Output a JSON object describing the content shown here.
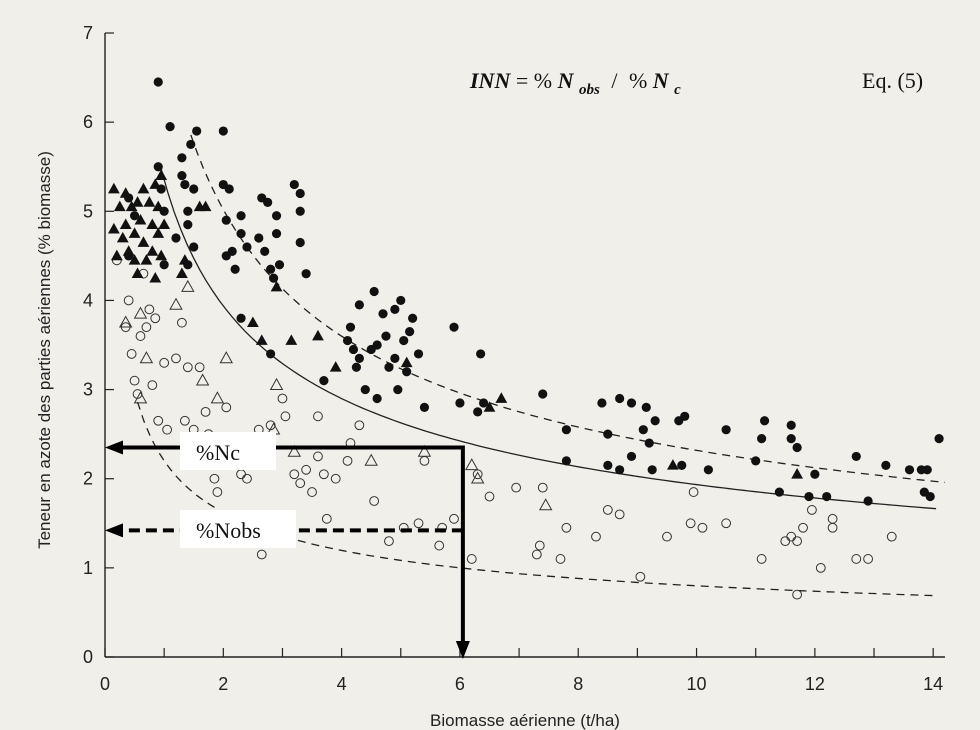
{
  "chart_data": {
    "type": "scatter",
    "xlabel": "Biomasse aérienne (t/ha)",
    "ylabel": "Teneur en azote des parties aériennes (% biomasse)",
    "xlim": [
      0,
      14.2
    ],
    "ylim": [
      0,
      7
    ],
    "x_ticks": [
      0,
      2,
      4,
      6,
      8,
      10,
      12,
      14
    ],
    "y_ticks": [
      0,
      1,
      2,
      3,
      4,
      5,
      6,
      7
    ],
    "x_minor_ticks": [
      1,
      3,
      5,
      7,
      9,
      11,
      13
    ],
    "grid": false,
    "equation": {
      "lhs": "INN",
      "pct1": "%",
      "var1": "N",
      "sub1": "obs",
      "sep": "/",
      "pct2": "%",
      "var2": "N",
      "sub2": "c",
      "ref": "Eq. (5)"
    },
    "annotations": {
      "nc_label": "%Nc",
      "nobs_label": "%Nobs",
      "biomass_x": 6.05,
      "nc_y": 2.35,
      "nobs_y": 1.42
    },
    "curves": {
      "critical": {
        "a": 5.35,
        "b": -0.442,
        "x_start": 0.95,
        "x_end": 14.05
      },
      "upper": {
        "a": 7.0,
        "b": -0.48,
        "x_start": 1.45,
        "x_end": 14.2
      },
      "lower": {
        "a": 2.2,
        "b": -0.44,
        "x_start": 0.55,
        "x_end": 14.0
      }
    },
    "series": [
      {
        "marker": "filled-circle",
        "points": [
          [
            0.4,
            4.5
          ],
          [
            0.4,
            5.15
          ],
          [
            0.5,
            4.95
          ],
          [
            0.9,
            6.45
          ],
          [
            0.9,
            5.5
          ],
          [
            0.95,
            5.25
          ],
          [
            1.0,
            4.4
          ],
          [
            1.0,
            5.0
          ],
          [
            1.1,
            5.95
          ],
          [
            1.2,
            4.7
          ],
          [
            1.3,
            5.6
          ],
          [
            1.3,
            5.4
          ],
          [
            1.35,
            5.3
          ],
          [
            1.4,
            5.0
          ],
          [
            1.4,
            4.85
          ],
          [
            1.45,
            5.75
          ],
          [
            1.5,
            5.25
          ],
          [
            1.5,
            4.6
          ],
          [
            1.55,
            5.9
          ],
          [
            1.4,
            4.4
          ],
          [
            2.0,
            5.9
          ],
          [
            2.0,
            5.3
          ],
          [
            2.05,
            4.9
          ],
          [
            2.05,
            4.5
          ],
          [
            2.1,
            5.25
          ],
          [
            2.15,
            4.55
          ],
          [
            2.2,
            4.35
          ],
          [
            2.3,
            4.95
          ],
          [
            2.3,
            4.75
          ],
          [
            2.4,
            4.6
          ],
          [
            2.6,
            4.7
          ],
          [
            2.65,
            5.15
          ],
          [
            2.7,
            4.55
          ],
          [
            2.75,
            5.1
          ],
          [
            2.8,
            4.35
          ],
          [
            2.85,
            4.25
          ],
          [
            2.9,
            4.95
          ],
          [
            2.9,
            4.75
          ],
          [
            2.95,
            4.4
          ],
          [
            2.3,
            3.8
          ],
          [
            2.8,
            3.4
          ],
          [
            3.2,
            5.3
          ],
          [
            3.3,
            5.2
          ],
          [
            3.3,
            5.0
          ],
          [
            3.3,
            4.65
          ],
          [
            3.4,
            4.3
          ],
          [
            3.7,
            3.1
          ],
          [
            4.1,
            3.55
          ],
          [
            4.15,
            3.7
          ],
          [
            4.2,
            3.45
          ],
          [
            4.25,
            3.25
          ],
          [
            4.3,
            3.95
          ],
          [
            4.3,
            3.35
          ],
          [
            4.4,
            3.0
          ],
          [
            4.5,
            3.45
          ],
          [
            4.55,
            4.1
          ],
          [
            4.6,
            3.5
          ],
          [
            4.6,
            2.9
          ],
          [
            4.7,
            3.85
          ],
          [
            4.75,
            3.6
          ],
          [
            4.8,
            3.25
          ],
          [
            4.9,
            3.9
          ],
          [
            4.9,
            3.35
          ],
          [
            4.95,
            3.0
          ],
          [
            5.0,
            4.0
          ],
          [
            5.05,
            3.55
          ],
          [
            5.1,
            3.2
          ],
          [
            5.15,
            3.65
          ],
          [
            5.2,
            3.8
          ],
          [
            5.3,
            3.4
          ],
          [
            5.4,
            2.8
          ],
          [
            5.9,
            3.7
          ],
          [
            6.0,
            2.85
          ],
          [
            6.3,
            2.75
          ],
          [
            6.35,
            3.4
          ],
          [
            6.4,
            2.85
          ],
          [
            7.4,
            2.95
          ],
          [
            7.8,
            2.55
          ],
          [
            7.8,
            2.2
          ],
          [
            8.4,
            2.85
          ],
          [
            8.5,
            2.5
          ],
          [
            8.5,
            2.15
          ],
          [
            8.7,
            2.1
          ],
          [
            8.7,
            2.9
          ],
          [
            8.9,
            2.85
          ],
          [
            8.9,
            2.25
          ],
          [
            9.1,
            2.55
          ],
          [
            9.15,
            2.8
          ],
          [
            9.2,
            2.4
          ],
          [
            9.25,
            2.1
          ],
          [
            9.3,
            2.65
          ],
          [
            9.7,
            2.65
          ],
          [
            9.75,
            2.15
          ],
          [
            9.8,
            2.7
          ],
          [
            10.2,
            2.1
          ],
          [
            10.5,
            2.55
          ],
          [
            11.0,
            2.2
          ],
          [
            11.1,
            2.45
          ],
          [
            11.15,
            2.65
          ],
          [
            11.4,
            1.85
          ],
          [
            11.6,
            2.6
          ],
          [
            11.6,
            2.45
          ],
          [
            11.7,
            2.35
          ],
          [
            11.9,
            1.8
          ],
          [
            12.0,
            2.05
          ],
          [
            12.2,
            1.8
          ],
          [
            12.7,
            2.25
          ],
          [
            12.9,
            1.75
          ],
          [
            13.2,
            2.15
          ],
          [
            13.6,
            2.1
          ],
          [
            13.8,
            2.1
          ],
          [
            13.85,
            1.85
          ],
          [
            13.9,
            2.1
          ],
          [
            13.95,
            1.8
          ],
          [
            14.1,
            2.45
          ]
        ]
      },
      {
        "marker": "open-circle",
        "points": [
          [
            0.2,
            4.45
          ],
          [
            0.35,
            3.7
          ],
          [
            0.4,
            4.0
          ],
          [
            0.45,
            3.4
          ],
          [
            0.5,
            3.1
          ],
          [
            0.55,
            2.95
          ],
          [
            0.6,
            3.6
          ],
          [
            0.65,
            4.3
          ],
          [
            0.7,
            3.7
          ],
          [
            0.75,
            3.9
          ],
          [
            0.8,
            3.05
          ],
          [
            0.85,
            3.8
          ],
          [
            0.9,
            2.65
          ],
          [
            1.0,
            3.3
          ],
          [
            1.05,
            2.55
          ],
          [
            1.2,
            3.35
          ],
          [
            1.3,
            3.75
          ],
          [
            1.35,
            2.65
          ],
          [
            1.4,
            3.25
          ],
          [
            1.5,
            2.55
          ],
          [
            1.6,
            3.25
          ],
          [
            1.7,
            2.75
          ],
          [
            1.75,
            2.5
          ],
          [
            1.85,
            2.0
          ],
          [
            1.9,
            1.85
          ],
          [
            2.0,
            2.45
          ],
          [
            2.05,
            2.8
          ],
          [
            2.3,
            2.05
          ],
          [
            2.4,
            2.0
          ],
          [
            2.6,
            2.55
          ],
          [
            2.65,
            1.15
          ],
          [
            2.8,
            2.6
          ],
          [
            3.0,
            2.9
          ],
          [
            3.05,
            2.7
          ],
          [
            3.2,
            2.05
          ],
          [
            3.3,
            1.95
          ],
          [
            3.4,
            2.1
          ],
          [
            3.5,
            1.85
          ],
          [
            3.6,
            2.25
          ],
          [
            3.6,
            2.7
          ],
          [
            3.7,
            2.05
          ],
          [
            3.75,
            1.55
          ],
          [
            3.9,
            2.0
          ],
          [
            4.1,
            2.2
          ],
          [
            4.15,
            2.4
          ],
          [
            4.3,
            2.6
          ],
          [
            4.55,
            1.75
          ],
          [
            4.8,
            1.3
          ],
          [
            5.05,
            1.45
          ],
          [
            5.3,
            1.5
          ],
          [
            5.4,
            2.2
          ],
          [
            5.65,
            1.25
          ],
          [
            5.7,
            1.45
          ],
          [
            5.9,
            1.55
          ],
          [
            6.2,
            1.1
          ],
          [
            6.3,
            2.05
          ],
          [
            6.5,
            1.8
          ],
          [
            6.95,
            1.9
          ],
          [
            7.3,
            1.15
          ],
          [
            7.35,
            1.25
          ],
          [
            7.4,
            1.9
          ],
          [
            7.7,
            1.1
          ],
          [
            7.8,
            1.45
          ],
          [
            8.3,
            1.35
          ],
          [
            8.5,
            1.65
          ],
          [
            8.7,
            1.6
          ],
          [
            9.05,
            0.9
          ],
          [
            9.5,
            1.35
          ],
          [
            9.9,
            1.5
          ],
          [
            9.95,
            1.85
          ],
          [
            10.1,
            1.45
          ],
          [
            10.5,
            1.5
          ],
          [
            11.1,
            1.1
          ],
          [
            11.5,
            1.3
          ],
          [
            11.6,
            1.35
          ],
          [
            11.7,
            0.7
          ],
          [
            11.8,
            1.45
          ],
          [
            11.95,
            1.65
          ],
          [
            12.1,
            1.0
          ],
          [
            12.3,
            1.45
          ],
          [
            12.7,
            1.1
          ],
          [
            12.9,
            1.1
          ],
          [
            13.3,
            1.35
          ],
          [
            12.3,
            1.55
          ],
          [
            11.7,
            1.3
          ]
        ]
      },
      {
        "marker": "filled-triangle",
        "points": [
          [
            0.15,
            5.25
          ],
          [
            0.15,
            4.8
          ],
          [
            0.2,
            4.5
          ],
          [
            0.25,
            5.05
          ],
          [
            0.3,
            4.7
          ],
          [
            0.35,
            5.2
          ],
          [
            0.35,
            4.85
          ],
          [
            0.4,
            4.55
          ],
          [
            0.45,
            5.05
          ],
          [
            0.5,
            4.75
          ],
          [
            0.5,
            4.45
          ],
          [
            0.55,
            5.1
          ],
          [
            0.6,
            4.9
          ],
          [
            0.65,
            4.65
          ],
          [
            0.65,
            5.25
          ],
          [
            0.7,
            4.45
          ],
          [
            0.75,
            5.1
          ],
          [
            0.8,
            4.85
          ],
          [
            0.8,
            4.55
          ],
          [
            0.85,
            5.3
          ],
          [
            0.9,
            5.05
          ],
          [
            0.9,
            4.75
          ],
          [
            0.95,
            4.5
          ],
          [
            0.95,
            5.4
          ],
          [
            1.0,
            4.85
          ],
          [
            0.55,
            4.3
          ],
          [
            0.85,
            4.25
          ],
          [
            1.3,
            4.3
          ],
          [
            1.35,
            4.45
          ],
          [
            1.6,
            5.05
          ],
          [
            1.7,
            5.05
          ],
          [
            2.9,
            4.15
          ],
          [
            2.5,
            3.75
          ],
          [
            2.65,
            3.55
          ],
          [
            3.15,
            3.55
          ],
          [
            3.6,
            3.6
          ],
          [
            3.9,
            3.25
          ],
          [
            5.1,
            3.3
          ],
          [
            6.5,
            2.8
          ],
          [
            6.7,
            2.9
          ],
          [
            9.6,
            2.15
          ],
          [
            11.7,
            2.05
          ]
        ]
      },
      {
        "marker": "open-triangle",
        "points": [
          [
            0.35,
            3.75
          ],
          [
            0.6,
            3.85
          ],
          [
            0.7,
            3.35
          ],
          [
            0.6,
            2.9
          ],
          [
            1.2,
            3.95
          ],
          [
            1.4,
            4.15
          ],
          [
            1.65,
            3.1
          ],
          [
            1.9,
            2.9
          ],
          [
            2.05,
            3.35
          ],
          [
            2.85,
            2.55
          ],
          [
            2.9,
            3.05
          ],
          [
            3.2,
            2.3
          ],
          [
            4.5,
            2.2
          ],
          [
            5.4,
            2.3
          ],
          [
            6.2,
            2.15
          ],
          [
            6.3,
            2.0
          ],
          [
            7.45,
            1.7
          ]
        ]
      }
    ]
  }
}
